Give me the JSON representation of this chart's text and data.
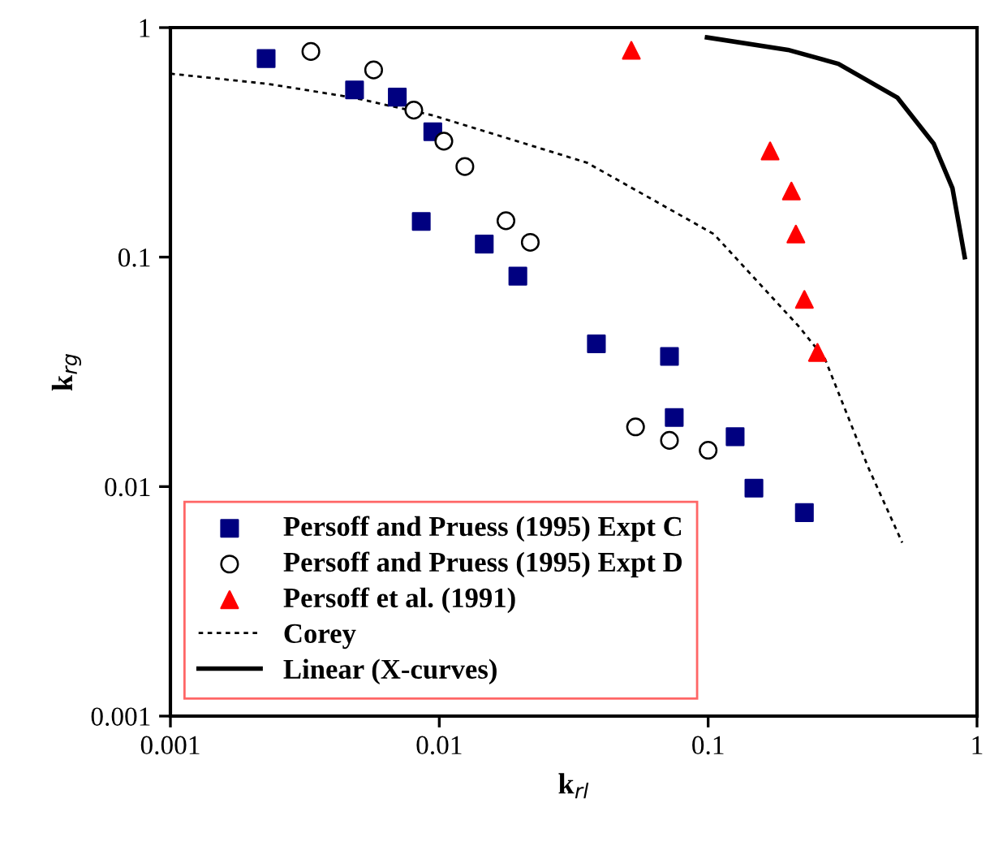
{
  "chart_data": {
    "type": "scatter",
    "xlabel": "k$_{rl}$",
    "ylabel": "k$_{rg}$",
    "log": "xy",
    "xlim": [
      0.001,
      1
    ],
    "ylim": [
      0.001,
      1
    ],
    "xticks": [
      0.001,
      0.01,
      0.1,
      1
    ],
    "yticks": [
      0.001,
      0.01,
      0.1,
      1
    ],
    "grid": false,
    "legend": "bottom left",
    "series": [
      {
        "name": "Persoff and Pruess (1995) Expt C",
        "marker": "square",
        "color": "#000080",
        "x": [
          0.00227,
          0.00484,
          0.00698,
          0.00946,
          0.00857,
          0.0147,
          0.0196,
          0.0384,
          0.0718,
          0.0748,
          0.126,
          0.148,
          0.228
        ],
        "values": [
          0.733,
          0.535,
          0.498,
          0.352,
          0.143,
          0.114,
          0.0826,
          0.0419,
          0.0369,
          0.02,
          0.0165,
          0.00984,
          0.0077
        ]
      },
      {
        "name": "Persoff and Pruess (1995) Expt D",
        "marker": "circle",
        "color": "#000000",
        "x": [
          0.00333,
          0.0057,
          0.00804,
          0.0104,
          0.01245,
          0.0177,
          0.0218,
          0.0537,
          0.0718,
          0.1
        ],
        "values": [
          0.787,
          0.654,
          0.437,
          0.32,
          0.248,
          0.144,
          0.116,
          0.0182,
          0.0159,
          0.0144
        ]
      },
      {
        "name": "Persoff et al. (1991)",
        "marker": "triangle",
        "color": "#ff0000",
        "x": [
          0.0518,
          0.17,
          0.204,
          0.212,
          0.228,
          0.255
        ],
        "values": [
          0.796,
          0.29,
          0.194,
          0.126,
          0.0654,
          0.0384
        ]
      },
      {
        "name": "Corey",
        "type": "line",
        "line_style": "dotted",
        "marker": "none",
        "color": "#000000",
        "x": [
          0.001,
          0.00232,
          0.0048,
          0.0095,
          0.0354,
          0.105,
          0.217,
          0.272,
          0.393,
          0.527
        ],
        "values": [
          0.63,
          0.568,
          0.495,
          0.414,
          0.258,
          0.126,
          0.05,
          0.036,
          0.0122,
          0.0057
        ]
      },
      {
        "name": "Linear (X-curves)",
        "type": "line",
        "line_style": "solid",
        "marker": "none",
        "color": "#000000",
        "x": [
          0.099,
          0.198,
          0.305,
          0.505,
          0.69,
          0.81,
          0.9
        ],
        "values": [
          0.906,
          0.8,
          0.695,
          0.496,
          0.312,
          0.2,
          0.1
        ]
      }
    ]
  }
}
